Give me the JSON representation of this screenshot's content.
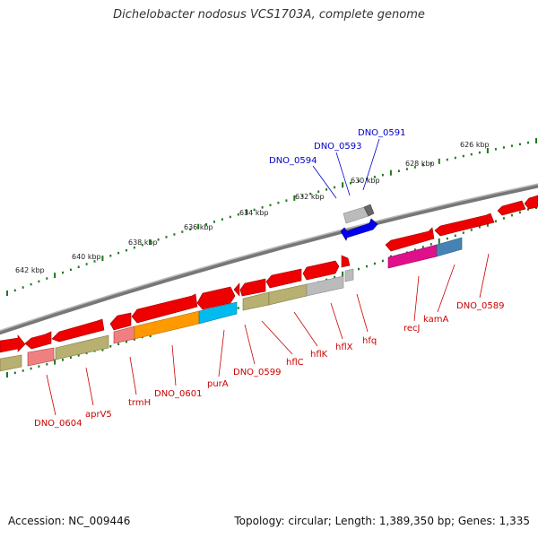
{
  "title": "Dichelobacter nodosus VCS1703A, complete genome",
  "footer": {
    "accession": "Accession: NC_009446",
    "summary": "Topology: circular; Length: 1,389,350 bp; Genes: 1,335"
  },
  "colors": {
    "backbone": "#777777",
    "ticks": "#1a7a1a",
    "gene_label": "#cc0000",
    "highlight_label": "#0000cc"
  },
  "scale_labels": [
    "626 kbp",
    "628 kbp",
    "630 kbp",
    "632 kbp",
    "634 kbp",
    "636 kbp",
    "638 kbp",
    "640 kbp",
    "642 kbp"
  ],
  "gene_labels": [
    "DNO_0604",
    "aprV5",
    "trmH",
    "DNO_0601",
    "purA",
    "DNO_0599",
    "hflC",
    "hflK",
    "hflX",
    "hfq",
    "recJ",
    "kamA",
    "DNO_0589"
  ],
  "highlight_labels": [
    "DNO_0594",
    "DNO_0593",
    "DNO_0591"
  ]
}
